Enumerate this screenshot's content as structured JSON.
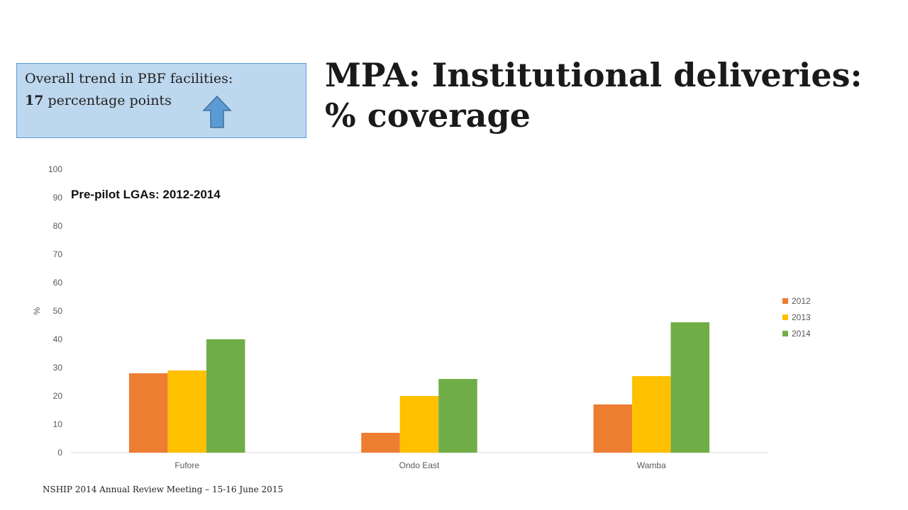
{
  "callout": {
    "line1": "Overall trend in PBF facilities:",
    "line2_number": "17",
    "line2_text": " percentage points",
    "icon": "up-arrow-icon",
    "bg_color": "#bdd7ee",
    "arrow_color": "#5b9bd5"
  },
  "title": {
    "line1": "MPA: Institutional deliveries:",
    "line2": "% coverage"
  },
  "footer": "NSHIP 2014 Annual Review Meeting – 15-16 June 2015",
  "chart_data": {
    "type": "bar",
    "title": "Pre-pilot LGAs: 2012-2014",
    "xlabel": "",
    "ylabel": "%",
    "ylim": [
      0,
      100
    ],
    "yticks": [
      0,
      10,
      20,
      30,
      40,
      50,
      60,
      70,
      80,
      90,
      100
    ],
    "categories": [
      "Fufore",
      "Ondo East",
      "Wamba"
    ],
    "series": [
      {
        "name": "2012",
        "values": [
          28,
          7,
          17
        ],
        "color": "#ed7d31"
      },
      {
        "name": "2013",
        "values": [
          29,
          20,
          27
        ],
        "color": "#ffc000"
      },
      {
        "name": "2014",
        "values": [
          40,
          26,
          46
        ],
        "color": "#70ad47"
      }
    ],
    "grid": false,
    "legend": "right"
  }
}
